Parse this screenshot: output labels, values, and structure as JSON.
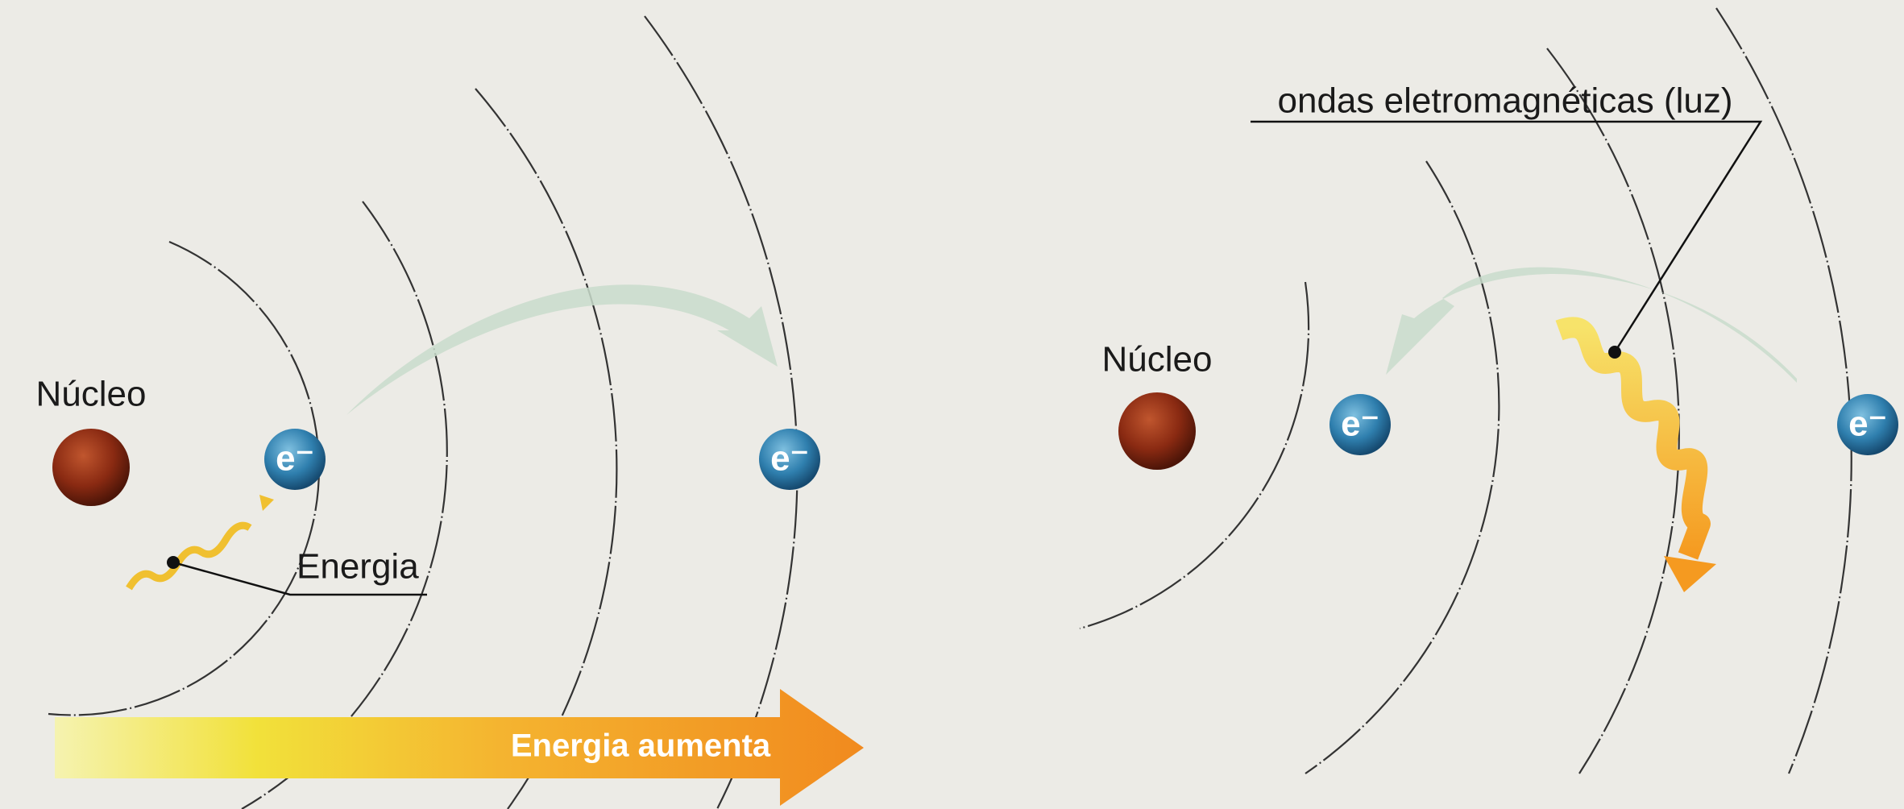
{
  "left": {
    "nucleus_label": "Núcleo",
    "electron_labels": [
      "e⁻",
      "e⁻"
    ],
    "energy_label": "Energia",
    "bar_label": "Energia aumenta"
  },
  "right": {
    "nucleus_label": "Núcleo",
    "electron_labels": [
      "e⁻",
      "e⁻"
    ],
    "wave_label": "ondas eletromagnéticas (luz)"
  }
}
